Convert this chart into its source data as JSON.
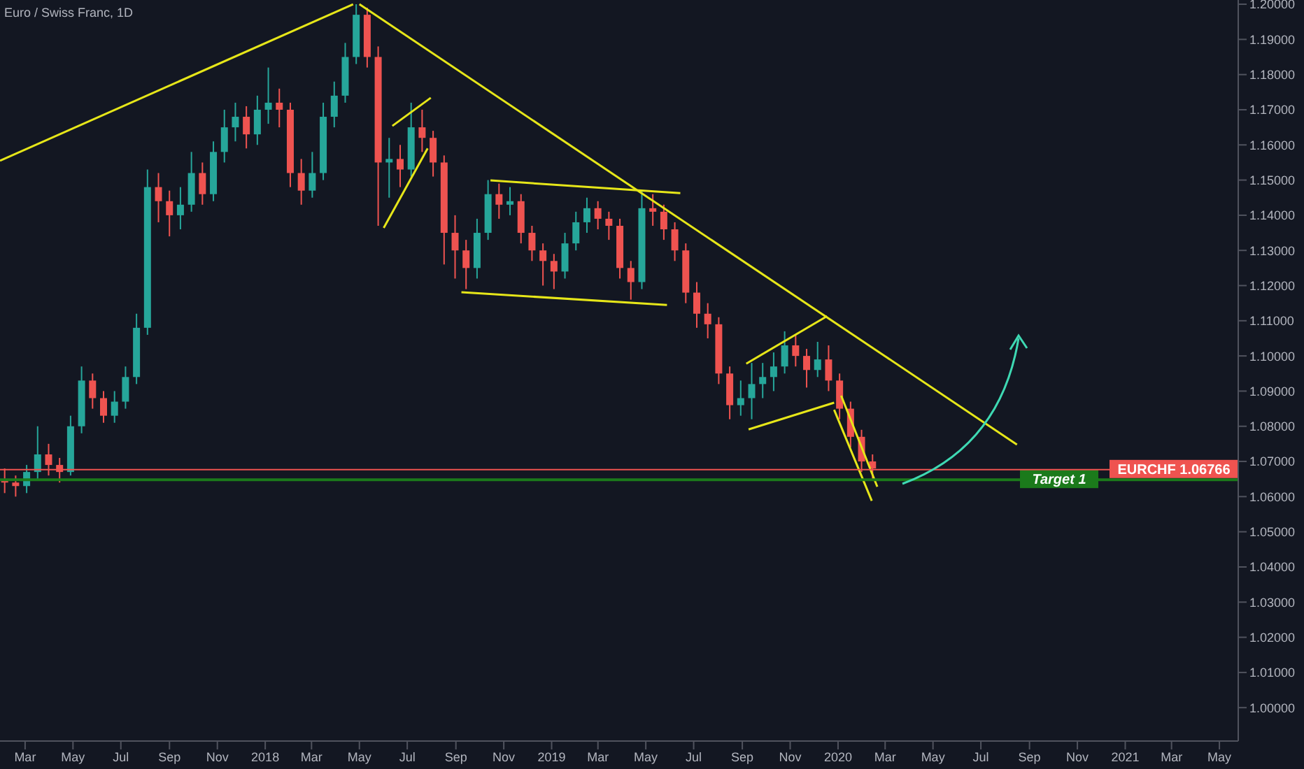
{
  "chart_data": {
    "type": "candlestick",
    "title": "Euro / Swiss Franc, 1D",
    "x": [
      "2017-02-03",
      "2017-02-17",
      "2017-03-03",
      "2017-03-17",
      "2017-03-31",
      "2017-04-14",
      "2017-04-28",
      "2017-05-12",
      "2017-05-26",
      "2017-06-09",
      "2017-06-23",
      "2017-07-07",
      "2017-07-21",
      "2017-08-04",
      "2017-08-18",
      "2017-09-01",
      "2017-09-15",
      "2017-09-29",
      "2017-10-13",
      "2017-10-27",
      "2017-11-10",
      "2017-11-24",
      "2017-12-08",
      "2017-12-22",
      "2018-01-05",
      "2018-01-19",
      "2018-02-02",
      "2018-02-16",
      "2018-03-02",
      "2018-03-16",
      "2018-03-30",
      "2018-04-13",
      "2018-04-27",
      "2018-05-11",
      "2018-05-25",
      "2018-06-08",
      "2018-06-22",
      "2018-07-06",
      "2018-07-20",
      "2018-08-03",
      "2018-08-17",
      "2018-08-31",
      "2018-09-14",
      "2018-09-28",
      "2018-10-12",
      "2018-10-26",
      "2018-11-09",
      "2018-11-23",
      "2018-12-07",
      "2018-12-21",
      "2019-01-04",
      "2019-01-18",
      "2019-02-01",
      "2019-02-15",
      "2019-03-01",
      "2019-03-15",
      "2019-03-29",
      "2019-04-12",
      "2019-04-26",
      "2019-05-10",
      "2019-05-24",
      "2019-06-07",
      "2019-06-21",
      "2019-07-05",
      "2019-07-19",
      "2019-08-02",
      "2019-08-16",
      "2019-08-30",
      "2019-09-13",
      "2019-09-27",
      "2019-10-11",
      "2019-10-25",
      "2019-11-08",
      "2019-11-22",
      "2019-12-06",
      "2019-12-20",
      "2020-01-03",
      "2020-01-17",
      "2020-01-31",
      "2020-02-14"
    ],
    "ohlc": [
      [
        1.065,
        1.068,
        1.061,
        1.064
      ],
      [
        1.064,
        1.066,
        1.06,
        1.063
      ],
      [
        1.063,
        1.069,
        1.061,
        1.067
      ],
      [
        1.067,
        1.08,
        1.065,
        1.072
      ],
      [
        1.072,
        1.075,
        1.066,
        1.069
      ],
      [
        1.069,
        1.071,
        1.064,
        1.067
      ],
      [
        1.067,
        1.083,
        1.066,
        1.08
      ],
      [
        1.08,
        1.097,
        1.078,
        1.093
      ],
      [
        1.093,
        1.095,
        1.085,
        1.088
      ],
      [
        1.088,
        1.09,
        1.081,
        1.083
      ],
      [
        1.083,
        1.09,
        1.081,
        1.087
      ],
      [
        1.087,
        1.097,
        1.085,
        1.094
      ],
      [
        1.094,
        1.112,
        1.092,
        1.108
      ],
      [
        1.108,
        1.153,
        1.106,
        1.148
      ],
      [
        1.148,
        1.152,
        1.138,
        1.144
      ],
      [
        1.144,
        1.147,
        1.134,
        1.14
      ],
      [
        1.14,
        1.148,
        1.136,
        1.143
      ],
      [
        1.143,
        1.158,
        1.141,
        1.152
      ],
      [
        1.152,
        1.155,
        1.143,
        1.146
      ],
      [
        1.146,
        1.161,
        1.144,
        1.158
      ],
      [
        1.158,
        1.17,
        1.155,
        1.165
      ],
      [
        1.165,
        1.172,
        1.161,
        1.168
      ],
      [
        1.168,
        1.171,
        1.159,
        1.163
      ],
      [
        1.163,
        1.174,
        1.16,
        1.17
      ],
      [
        1.17,
        1.182,
        1.166,
        1.172
      ],
      [
        1.172,
        1.176,
        1.165,
        1.17
      ],
      [
        1.17,
        1.172,
        1.148,
        1.152
      ],
      [
        1.152,
        1.156,
        1.143,
        1.147
      ],
      [
        1.147,
        1.158,
        1.145,
        1.152
      ],
      [
        1.152,
        1.172,
        1.15,
        1.168
      ],
      [
        1.168,
        1.178,
        1.165,
        1.174
      ],
      [
        1.174,
        1.189,
        1.172,
        1.185
      ],
      [
        1.185,
        1.2,
        1.183,
        1.197
      ],
      [
        1.197,
        1.199,
        1.182,
        1.185
      ],
      [
        1.185,
        1.188,
        1.137,
        1.155
      ],
      [
        1.155,
        1.162,
        1.145,
        1.156
      ],
      [
        1.156,
        1.16,
        1.148,
        1.153
      ],
      [
        1.153,
        1.172,
        1.151,
        1.165
      ],
      [
        1.165,
        1.17,
        1.158,
        1.162
      ],
      [
        1.162,
        1.164,
        1.151,
        1.155
      ],
      [
        1.155,
        1.157,
        1.126,
        1.135
      ],
      [
        1.135,
        1.14,
        1.122,
        1.13
      ],
      [
        1.13,
        1.133,
        1.119,
        1.125
      ],
      [
        1.125,
        1.139,
        1.122,
        1.135
      ],
      [
        1.135,
        1.15,
        1.133,
        1.146
      ],
      [
        1.146,
        1.149,
        1.139,
        1.143
      ],
      [
        1.143,
        1.148,
        1.14,
        1.144
      ],
      [
        1.144,
        1.146,
        1.132,
        1.135
      ],
      [
        1.135,
        1.137,
        1.127,
        1.13
      ],
      [
        1.13,
        1.132,
        1.12,
        1.127
      ],
      [
        1.127,
        1.129,
        1.119,
        1.124
      ],
      [
        1.124,
        1.135,
        1.122,
        1.132
      ],
      [
        1.132,
        1.141,
        1.13,
        1.138
      ],
      [
        1.138,
        1.145,
        1.135,
        1.142
      ],
      [
        1.142,
        1.144,
        1.136,
        1.139
      ],
      [
        1.139,
        1.141,
        1.133,
        1.137
      ],
      [
        1.137,
        1.139,
        1.122,
        1.125
      ],
      [
        1.125,
        1.127,
        1.116,
        1.121
      ],
      [
        1.121,
        1.147,
        1.119,
        1.142
      ],
      [
        1.142,
        1.146,
        1.137,
        1.141
      ],
      [
        1.141,
        1.143,
        1.133,
        1.136
      ],
      [
        1.136,
        1.138,
        1.127,
        1.13
      ],
      [
        1.13,
        1.132,
        1.115,
        1.118
      ],
      [
        1.118,
        1.121,
        1.108,
        1.112
      ],
      [
        1.112,
        1.115,
        1.105,
        1.109
      ],
      [
        1.109,
        1.111,
        1.092,
        1.095
      ],
      [
        1.095,
        1.097,
        1.082,
        1.086
      ],
      [
        1.086,
        1.093,
        1.083,
        1.088
      ],
      [
        1.088,
        1.098,
        1.082,
        1.092
      ],
      [
        1.092,
        1.098,
        1.088,
        1.094
      ],
      [
        1.094,
        1.101,
        1.09,
        1.097
      ],
      [
        1.097,
        1.107,
        1.095,
        1.103
      ],
      [
        1.103,
        1.106,
        1.097,
        1.1
      ],
      [
        1.1,
        1.102,
        1.091,
        1.096
      ],
      [
        1.096,
        1.104,
        1.094,
        1.099
      ],
      [
        1.099,
        1.103,
        1.09,
        1.093
      ],
      [
        1.093,
        1.095,
        1.082,
        1.085
      ],
      [
        1.085,
        1.087,
        1.074,
        1.077
      ],
      [
        1.077,
        1.079,
        1.067,
        1.07
      ],
      [
        1.07,
        1.072,
        1.065,
        1.068
      ]
    ],
    "colors": [
      "#ef5350",
      "#ef5350",
      "#26a69a",
      "#26a69a",
      "#ef5350",
      "#ef5350",
      "#26a69a",
      "#26a69a",
      "#ef5350",
      "#ef5350",
      "#26a69a",
      "#26a69a",
      "#26a69a",
      "#26a69a",
      "#ef5350",
      "#ef5350",
      "#26a69a",
      "#26a69a",
      "#ef5350",
      "#26a69a",
      "#26a69a",
      "#26a69a",
      "#ef5350",
      "#26a69a",
      "#26a69a",
      "#ef5350",
      "#ef5350",
      "#ef5350",
      "#26a69a",
      "#26a69a",
      "#26a69a",
      "#26a69a",
      "#26a69a",
      "#ef5350",
      "#ef5350",
      "#26a69a",
      "#ef5350",
      "#26a69a",
      "#ef5350",
      "#ef5350",
      "#ef5350",
      "#ef5350",
      "#ef5350",
      "#26a69a",
      "#26a69a",
      "#ef5350",
      "#26a69a",
      "#ef5350",
      "#ef5350",
      "#ef5350",
      "#ef5350",
      "#26a69a",
      "#26a69a",
      "#26a69a",
      "#ef5350",
      "#ef5350",
      "#ef5350",
      "#ef5350",
      "#26a69a",
      "#ef5350",
      "#ef5350",
      "#ef5350",
      "#ef5350",
      "#ef5350",
      "#ef5350",
      "#ef5350",
      "#ef5350",
      "#26a69a",
      "#26a69a",
      "#26a69a",
      "#26a69a",
      "#26a69a",
      "#ef5350",
      "#ef5350",
      "#26a69a",
      "#ef5350",
      "#ef5350",
      "#ef5350",
      "#ef5350",
      "#ef5350"
    ],
    "series": [
      {
        "type": "line",
        "color": "#e6e619",
        "x": [
          "2017-01-28",
          "2018-04-23"
        ],
        "values": [
          1.1555,
          1.2
        ]
      },
      {
        "type": "line",
        "color": "#e6e619",
        "x": [
          "2018-05-01",
          "2020-08-16"
        ],
        "values": [
          1.2,
          1.0748
        ]
      },
      {
        "type": "line",
        "color": "#e6e619",
        "x": [
          "2018-06-01",
          "2018-07-27"
        ],
        "values": [
          1.1364,
          1.159
        ]
      },
      {
        "type": "line",
        "color": "#e6e619",
        "x": [
          "2018-06-12",
          "2018-07-31"
        ],
        "values": [
          1.1654,
          1.1734
        ]
      },
      {
        "type": "line",
        "color": "#e6e619",
        "x": [
          "2018-10-15",
          "2019-06-14"
        ],
        "values": [
          1.1499,
          1.1463
        ]
      },
      {
        "type": "line",
        "color": "#e6e619",
        "x": [
          "2018-09-08",
          "2019-05-28"
        ],
        "values": [
          1.1181,
          1.1145
        ]
      },
      {
        "type": "line",
        "color": "#e6e619",
        "x": [
          "2019-09-06",
          "2019-12-18"
        ],
        "values": [
          1.0978,
          1.1113
        ]
      },
      {
        "type": "line",
        "color": "#e6e619",
        "x": [
          "2019-09-09",
          "2019-12-27"
        ],
        "values": [
          1.0791,
          1.0867
        ]
      },
      {
        "type": "line",
        "color": "#e6e619",
        "x": [
          "2020-01-05",
          "2020-02-20"
        ],
        "values": [
          1.0887,
          1.0628
        ]
      },
      {
        "type": "line",
        "color": "#e6e619",
        "x": [
          "2019-12-27",
          "2020-02-13"
        ],
        "values": [
          1.0847,
          1.0588
        ]
      }
    ],
    "ref_lines": [
      {
        "axis": "y",
        "value": 1.0648,
        "label": "Target 1",
        "color": "#1b7a1b"
      },
      {
        "axis": "y",
        "value": 1.06766,
        "label": "EURCHF 1.06766",
        "color": "#ef5350"
      }
    ],
    "xlim": [
      "2017-01-28",
      "2021-05-25"
    ],
    "xticks": [
      {
        "value": "2017-03-01",
        "label": "Mar"
      },
      {
        "value": "2017-05-01",
        "label": "May"
      },
      {
        "value": "2017-07-01",
        "label": "Jul"
      },
      {
        "value": "2017-09-01",
        "label": "Sep"
      },
      {
        "value": "2017-11-01",
        "label": "Nov"
      },
      {
        "value": "2018-01-01",
        "label": "2018"
      },
      {
        "value": "2018-03-01",
        "label": "Mar"
      },
      {
        "value": "2018-05-01",
        "label": "May"
      },
      {
        "value": "2018-07-01",
        "label": "Jul"
      },
      {
        "value": "2018-09-01",
        "label": "Sep"
      },
      {
        "value": "2018-11-01",
        "label": "Nov"
      },
      {
        "value": "2019-01-01",
        "label": "2019"
      },
      {
        "value": "2019-03-01",
        "label": "Mar"
      },
      {
        "value": "2019-05-01",
        "label": "May"
      },
      {
        "value": "2019-07-01",
        "label": "Jul"
      },
      {
        "value": "2019-09-01",
        "label": "Sep"
      },
      {
        "value": "2019-11-01",
        "label": "Nov"
      },
      {
        "value": "2020-01-01",
        "label": "2020"
      },
      {
        "value": "2020-03-01",
        "label": "Mar"
      },
      {
        "value": "2020-05-01",
        "label": "May"
      },
      {
        "value": "2020-07-01",
        "label": "Jul"
      },
      {
        "value": "2020-09-01",
        "label": "Sep"
      },
      {
        "value": "2020-11-01",
        "label": "Nov"
      },
      {
        "value": "2021-01-01",
        "label": "2021"
      },
      {
        "value": "2021-03-01",
        "label": "Mar"
      },
      {
        "value": "2021-05-01",
        "label": "May"
      }
    ],
    "ylim": [
      0.9905,
      1.2012
    ],
    "yticks": [
      {
        "value": 1.0,
        "label": "1.00000"
      },
      {
        "value": 1.01,
        "label": "1.01000"
      },
      {
        "value": 1.02,
        "label": "1.02000"
      },
      {
        "value": 1.03,
        "label": "1.03000"
      },
      {
        "value": 1.04,
        "label": "1.04000"
      },
      {
        "value": 1.05,
        "label": "1.05000"
      },
      {
        "value": 1.06,
        "label": "1.06000"
      },
      {
        "value": 1.07,
        "label": "1.07000"
      },
      {
        "value": 1.08,
        "label": "1.08000"
      },
      {
        "value": 1.09,
        "label": "1.09000"
      },
      {
        "value": 1.1,
        "label": "1.10000"
      },
      {
        "value": 1.11,
        "label": "1.11000"
      },
      {
        "value": 1.12,
        "label": "1.12000"
      },
      {
        "value": 1.13,
        "label": "1.13000"
      },
      {
        "value": 1.14,
        "label": "1.14000"
      },
      {
        "value": 1.15,
        "label": "1.15000"
      },
      {
        "value": 1.16,
        "label": "1.16000"
      },
      {
        "value": 1.17,
        "label": "1.17000"
      },
      {
        "value": 1.18,
        "label": "1.18000"
      },
      {
        "value": 1.19,
        "label": "1.19000"
      },
      {
        "value": 1.2,
        "label": "1.20000"
      }
    ],
    "grid": false,
    "legend": false
  }
}
